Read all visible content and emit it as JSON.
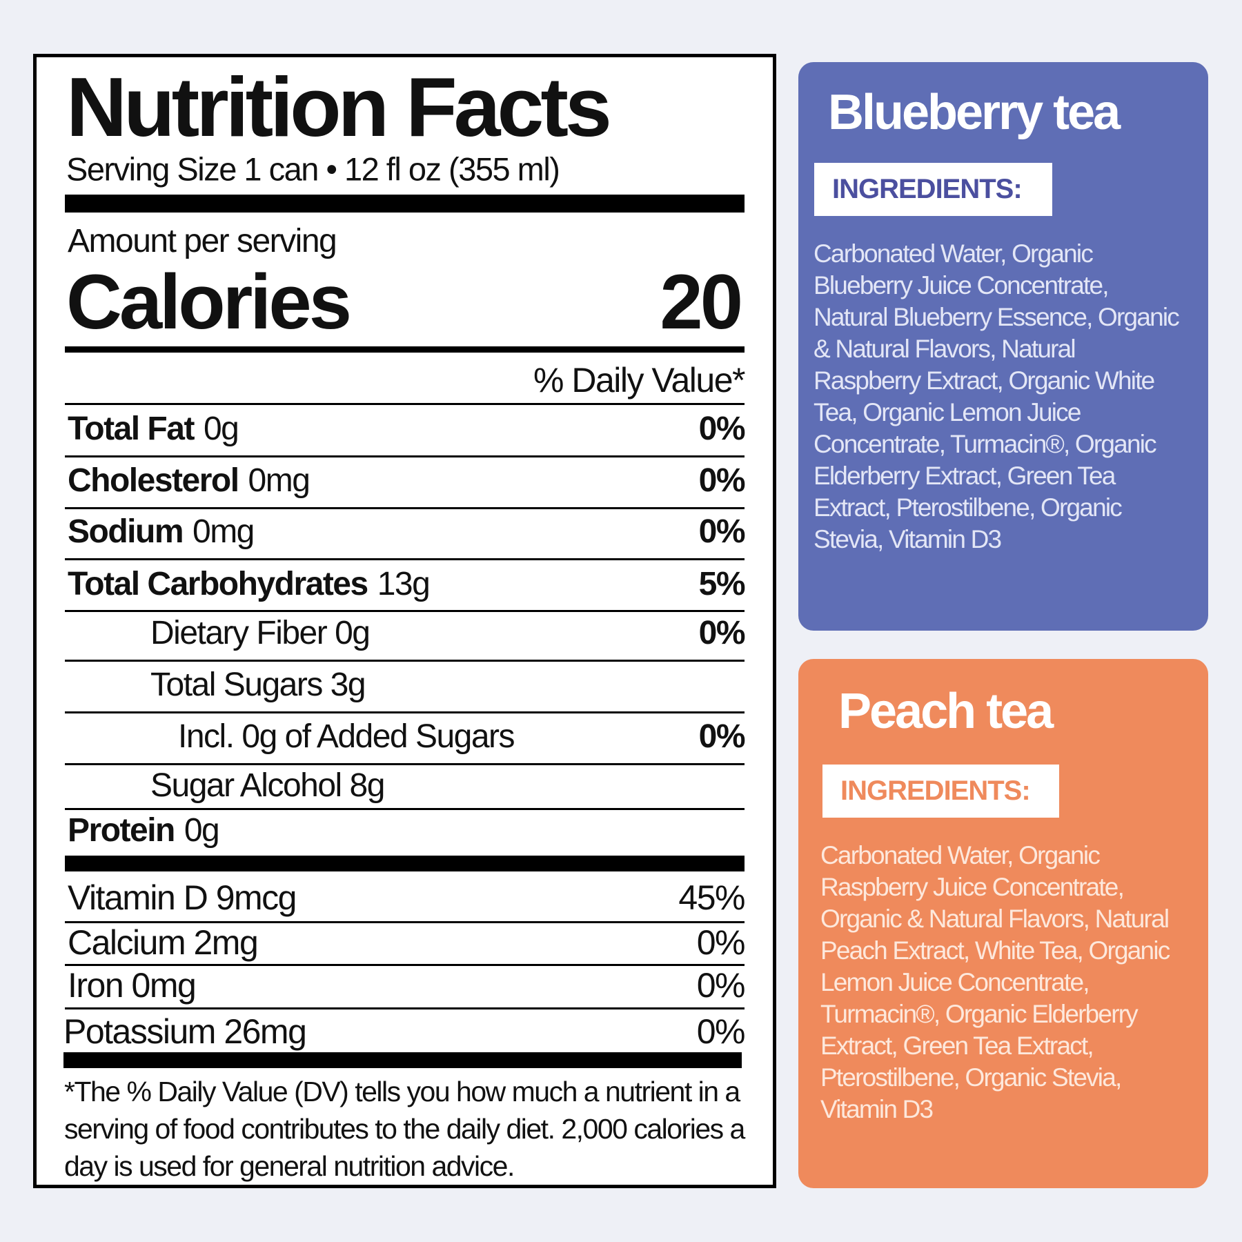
{
  "nutrition_facts": {
    "title": "Nutrition Facts",
    "serving_size": "Serving Size 1 can • 12 fl oz (355 ml)",
    "amount_per_serving": "Amount per serving",
    "calories_label": "Calories",
    "calories": 20,
    "daily_value_header": "% Daily Value*",
    "rows": [
      {
        "name": "Total Fat",
        "amount": "0g",
        "dv": "0%"
      },
      {
        "name": "Cholesterol",
        "amount": "0mg",
        "dv": "0%"
      },
      {
        "name": "Sodium",
        "amount": "0mg",
        "dv": "0%"
      },
      {
        "name": "Total Carbohydrates",
        "amount": "13g",
        "dv": "5%"
      },
      {
        "name": "Dietary Fiber 0g",
        "dv": "0%"
      },
      {
        "name": "Total Sugars 3g"
      },
      {
        "name": "Incl. 0g of Added Sugars",
        "dv": "0%"
      },
      {
        "name": "Sugar Alcohol 8g"
      },
      {
        "name": "Protein",
        "amount": "0g"
      }
    ],
    "vitamins": [
      {
        "name": "Vitamin D 9mcg",
        "dv": "45%"
      },
      {
        "name": "Calcium 2mg",
        "dv": "0%"
      },
      {
        "name": "Iron 0mg",
        "dv": "0%"
      },
      {
        "name": "Potassium 26mg",
        "dv": "0%"
      }
    ],
    "footnote": "*The % Daily Value (DV) tells you how much a nutrient in a serving of food contributes to the daily diet. 2,000 calories a day is used for general nutrition advice."
  },
  "products": [
    {
      "name": "Blueberry tea",
      "ingredients_label": "INGREDIENTS:",
      "ingredients": "Carbonated Water, Organic Blueberry Juice Concentrate, Natural Blueberry Essence, Organic & Natural Flavors, Natural Raspberry Extract, Organic White Tea, Organic Lemon Juice Concentrate, Turmacin®, Organic Elderberry Extract, Green Tea Extract, Pterostilbene, Organic Stevia, Vitamin D3"
    },
    {
      "name": "Peach tea",
      "ingredients_label": "INGREDIENTS:",
      "ingredients": "Carbonated Water, Organic Raspberry Juice Concentrate, Organic & Natural Flavors, Natural Peach Extract, White Tea, Organic Lemon Juice Concentrate, Turmacin®, Organic Elderberry Extract, Green Tea Extract, Pterostilbene, Organic Stevia, Vitamin D3"
    }
  ]
}
